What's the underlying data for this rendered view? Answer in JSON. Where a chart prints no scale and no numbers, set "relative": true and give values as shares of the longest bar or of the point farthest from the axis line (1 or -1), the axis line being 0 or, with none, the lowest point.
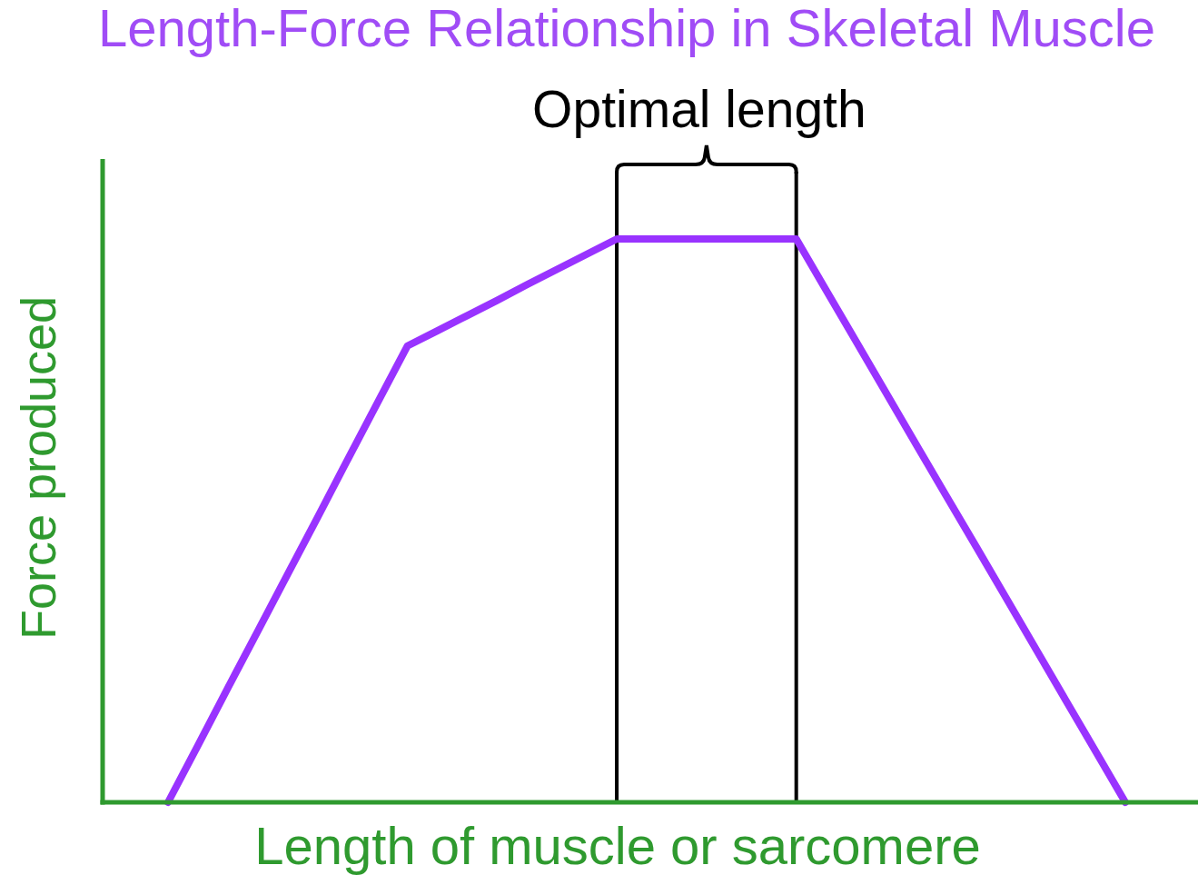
{
  "chart_data": {
    "type": "line",
    "title": "Length-Force Relationship in Skeletal Muscle",
    "xlabel": "Length of muscle or sarcomere",
    "ylabel": "Force produced",
    "relative": true,
    "categories": [
      null,
      null,
      null,
      null,
      null,
      null,
      null,
      null,
      null,
      null,
      null,
      null,
      null,
      null,
      null,
      null,
      null,
      null,
      null,
      null,
      null,
      null,
      null,
      null,
      null,
      null,
      null,
      null,
      null,
      null,
      null,
      null,
      null
    ],
    "series": [
      {
        "color": "#9933ff",
        "values": [
          0,
          0.101,
          0.203,
          0.304,
          0.405,
          0.506,
          0.608,
          0.709,
          0.81,
          0.837,
          0.864,
          0.891,
          0.919,
          0.946,
          0.973,
          1,
          1,
          1,
          1,
          1,
          1,
          1,
          0.909,
          0.818,
          0.727,
          0.636,
          0.545,
          0.455,
          0.364,
          0.273,
          0.182,
          0.091,
          0
        ]
      }
    ],
    "annotations": [
      "Optimal length"
    ]
  }
}
